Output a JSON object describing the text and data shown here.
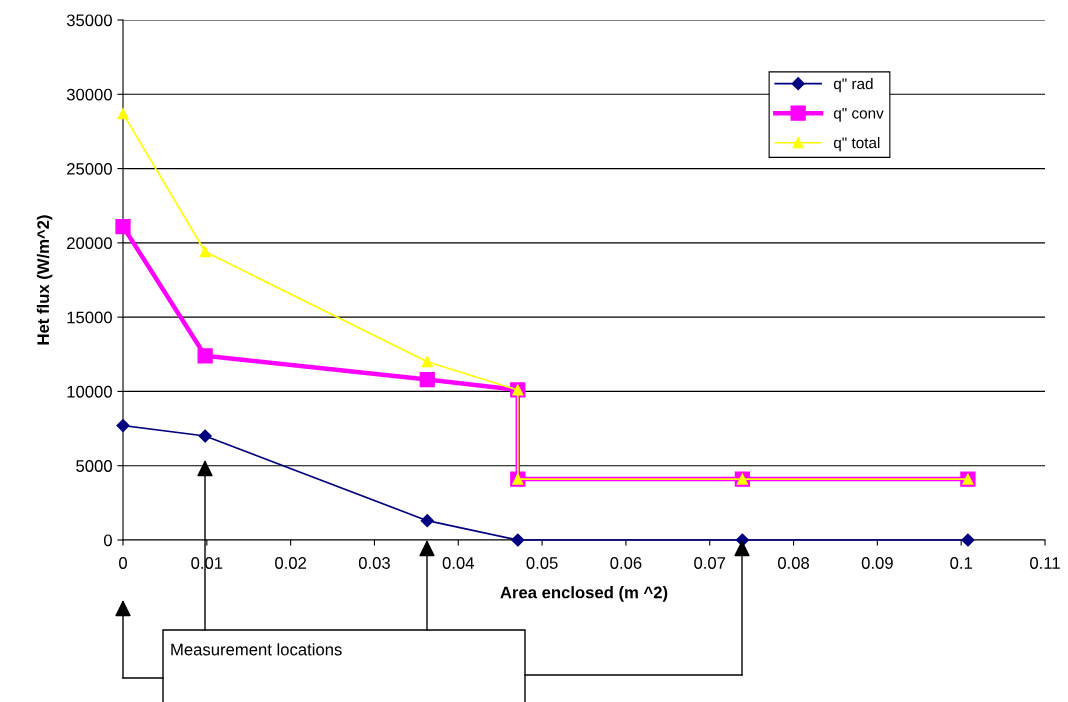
{
  "chart_data": {
    "type": "line",
    "xlabel": "Area enclosed (m ^2)",
    "ylabel": "Het flux (W/m^2)",
    "series": [
      {
        "name": "q\" rad",
        "color": "#000080",
        "marker": "diamond",
        "x": [
          0,
          0.0098,
          0.0363,
          0.0471,
          0.0739,
          0.1008
        ],
        "values": [
          7700,
          7000,
          1300,
          0,
          0,
          0
        ]
      },
      {
        "name": "q\" conv",
        "color": "#ff00ff",
        "marker": "square",
        "x": [
          0,
          0.0098,
          0.0363,
          0.0471,
          0.0471,
          0.0739,
          0.1008
        ],
        "values": [
          21100,
          12400,
          10800,
          10100,
          4100,
          4100,
          4100
        ]
      },
      {
        "name": "q\" total",
        "color": "#ffff00",
        "marker": "triangle",
        "x": [
          0,
          0.0098,
          0.0363,
          0.0471,
          0.0471,
          0.0739,
          0.1008
        ],
        "values": [
          28700,
          19400,
          12000,
          10100,
          4100,
          4100,
          4100
        ]
      }
    ],
    "xlim": [
      0,
      0.11
    ],
    "xticks": [
      0,
      0.01,
      0.02,
      0.03,
      0.04,
      0.05,
      0.06,
      0.07,
      0.08,
      0.09,
      0.1,
      0.11
    ],
    "ylim": [
      0,
      35000
    ],
    "yticks": [
      0,
      5000,
      10000,
      15000,
      20000,
      25000,
      30000,
      35000
    ],
    "grid": "y",
    "legend": "top right",
    "annotations": [
      "Measurement locations"
    ]
  }
}
